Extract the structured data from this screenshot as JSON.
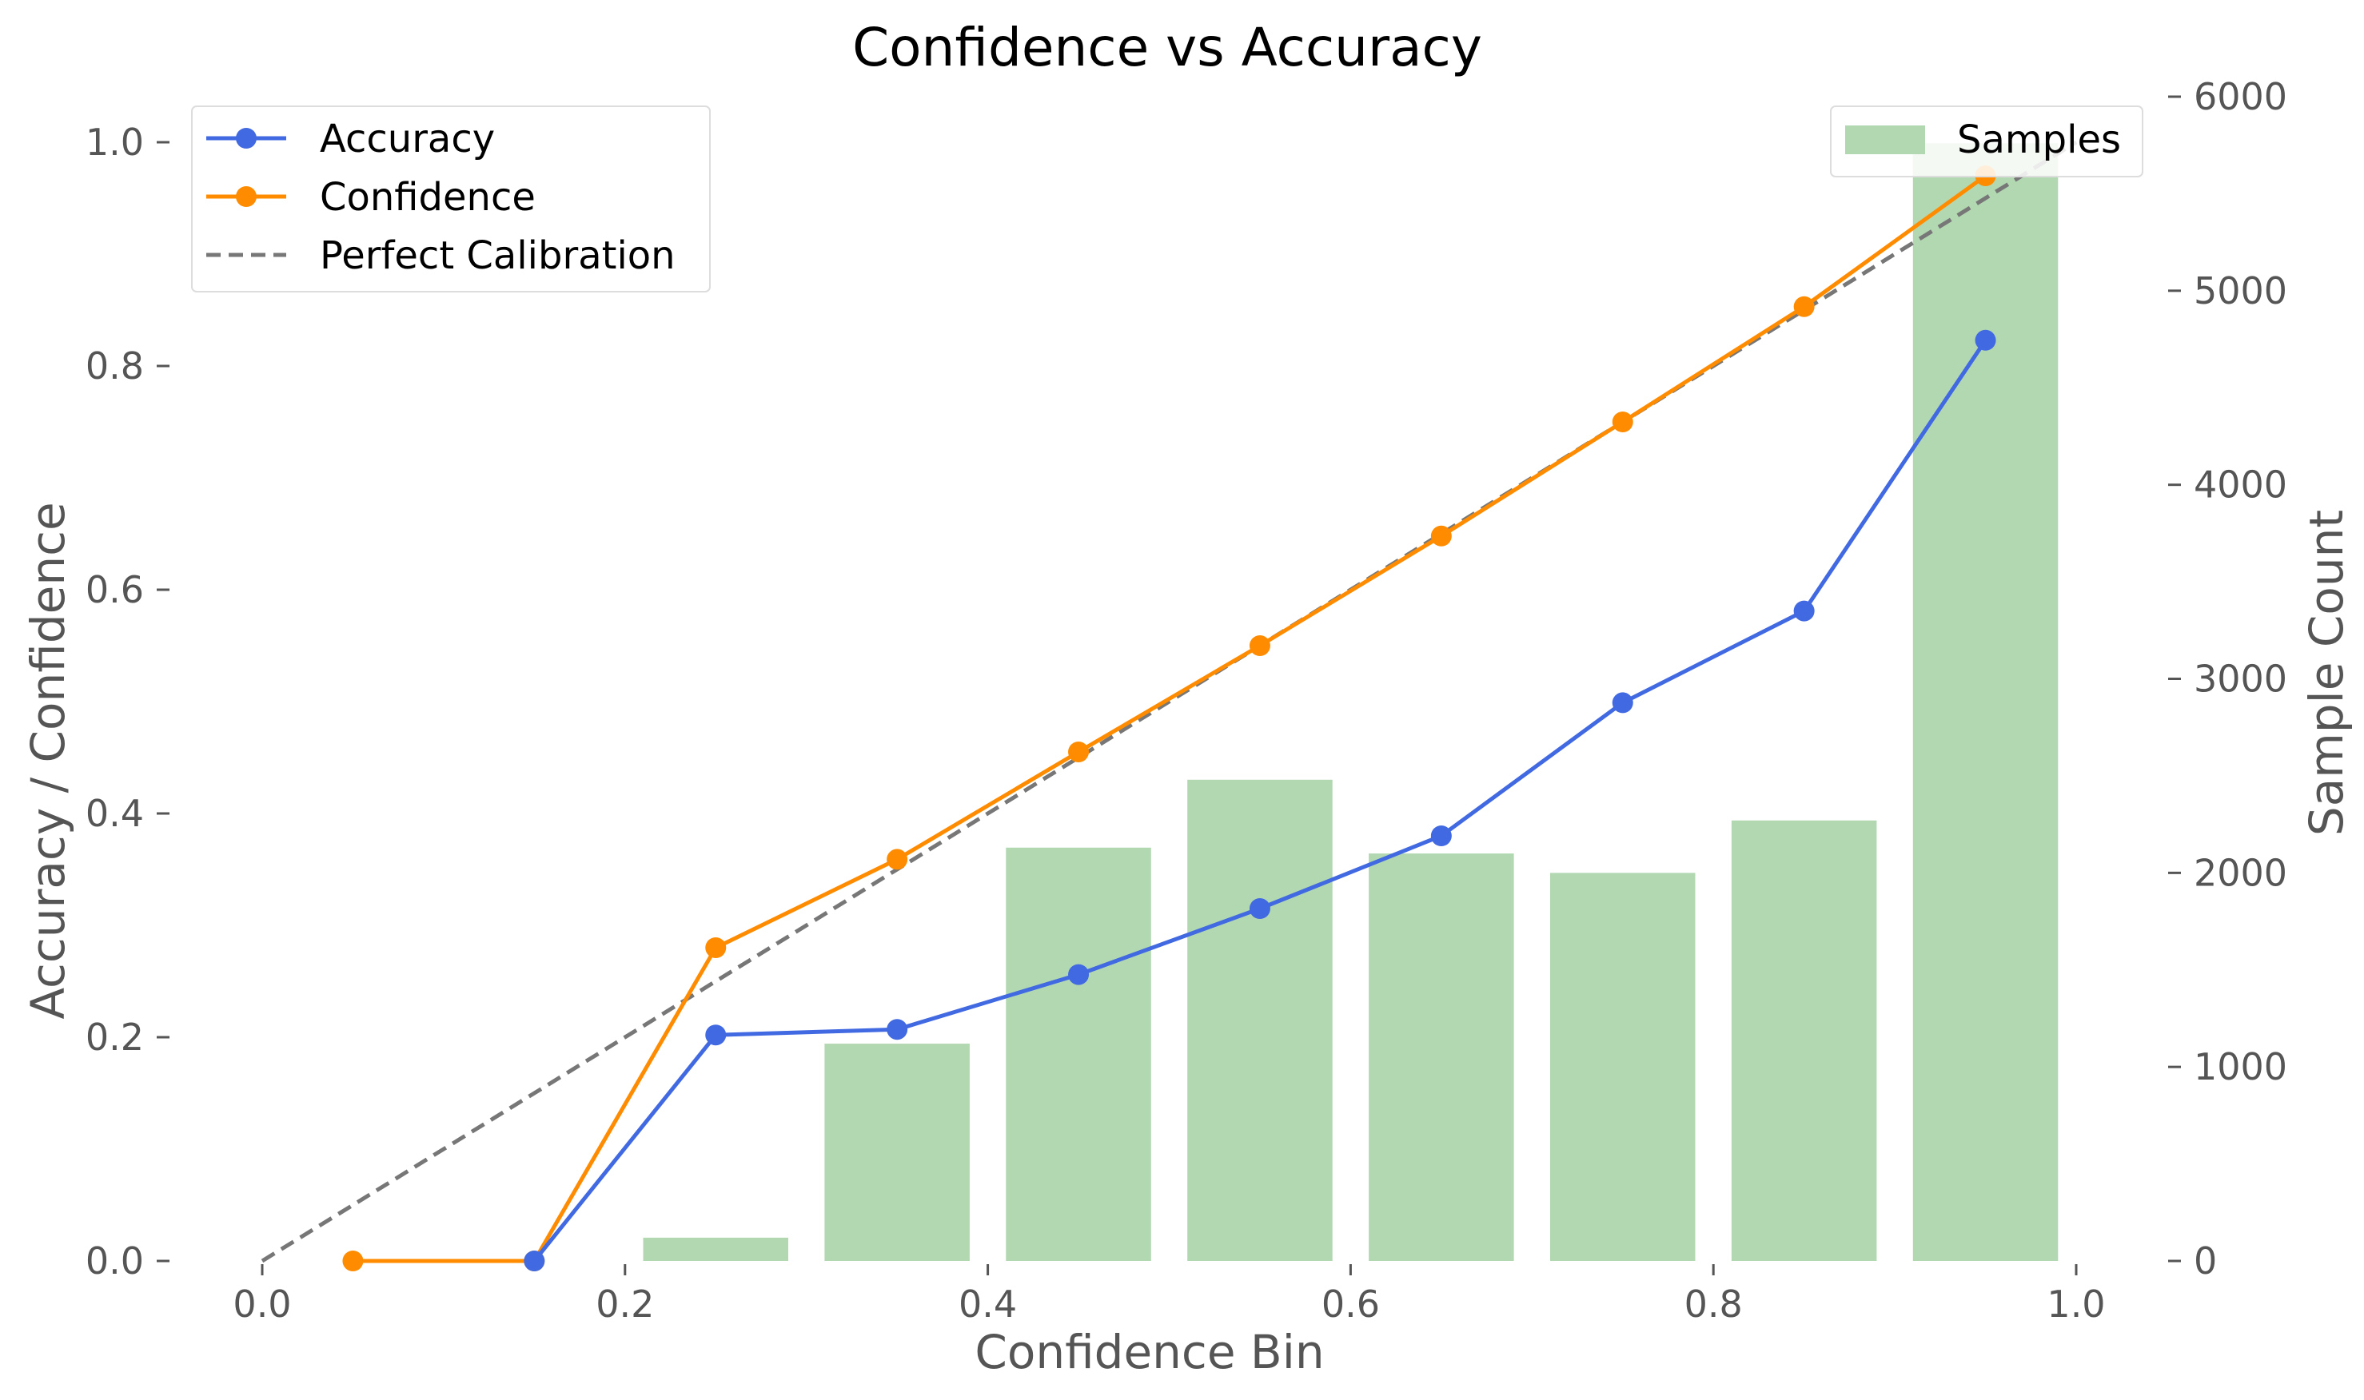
{
  "chart_data": {
    "type": "bar+line",
    "title": "Confidence vs Accuracy",
    "xlabel": "Confidence Bin",
    "ylabel": "Accuracy / Confidence",
    "y2label": "Sample Count",
    "xlim": [
      0.0,
      1.0
    ],
    "ylim": [
      0.0,
      1.05
    ],
    "y2lim": [
      0,
      6000
    ],
    "x_ticks": [
      "0.0",
      "0.2",
      "0.4",
      "0.6",
      "0.8",
      "1.0"
    ],
    "y_ticks": [
      "0.0",
      "0.2",
      "0.4",
      "0.6",
      "0.8",
      "1.0"
    ],
    "y2_ticks": [
      "0",
      "1000",
      "2000",
      "3000",
      "4000",
      "5000",
      "6000"
    ],
    "grid": false,
    "bins": [
      0.05,
      0.15,
      0.25,
      0.35,
      0.45,
      0.55,
      0.65,
      0.75,
      0.85,
      0.95
    ],
    "series": [
      {
        "name": "Accuracy",
        "type": "line",
        "color": "#4169e1",
        "x": [
          0.05,
          0.15,
          0.25,
          0.35,
          0.45,
          0.55,
          0.65,
          0.75,
          0.85,
          0.95
        ],
        "values": [
          null,
          0.0,
          0.202,
          0.207,
          0.256,
          0.315,
          0.38,
          0.499,
          0.581,
          0.823
        ]
      },
      {
        "name": "Confidence",
        "type": "line",
        "color": "#ff8c00",
        "x": [
          0.05,
          0.15,
          0.25,
          0.35,
          0.45,
          0.55,
          0.65,
          0.75,
          0.85,
          0.95
        ],
        "values": [
          0.0,
          0.0,
          0.28,
          0.359,
          0.455,
          0.55,
          0.648,
          0.75,
          0.853,
          0.97
        ]
      },
      {
        "name": "Perfect Calibration",
        "type": "line",
        "style": "dashed",
        "color": "#777777",
        "x": [
          0.0,
          1.0
        ],
        "values": [
          0.0,
          1.0
        ]
      },
      {
        "name": "Samples",
        "type": "bar",
        "axis": "right",
        "color": "#b2d8b2",
        "x": [
          0.25,
          0.35,
          0.45,
          0.55,
          0.65,
          0.75,
          0.85,
          0.95
        ],
        "values": [
          120,
          1120,
          2130,
          2480,
          2100,
          2000,
          2270,
          5760
        ]
      }
    ],
    "legends": [
      {
        "placement": "top-left",
        "entries": [
          "Accuracy",
          "Confidence",
          "Perfect Calibration"
        ]
      },
      {
        "placement": "top-right",
        "entries": [
          "Samples"
        ]
      }
    ]
  }
}
